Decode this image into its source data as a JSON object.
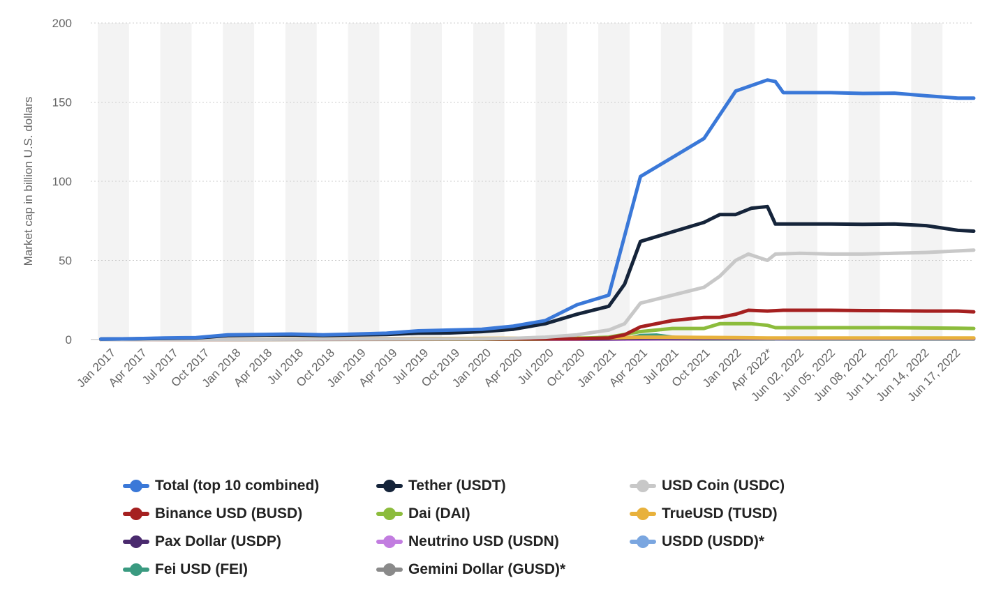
{
  "chart_data": {
    "type": "line",
    "title": "",
    "xlabel": "",
    "ylabel": "Market cap in billion U.S. dollars",
    "ylim": [
      0,
      200
    ],
    "yticks": [
      0,
      50,
      100,
      150,
      200
    ],
    "grid": "horizontal dotted",
    "legend_position": "bottom",
    "x_tick_labels": [
      "Jan 2017",
      "Apr 2017",
      "Jul 2017",
      "Oct 2017",
      "Jan 2018",
      "Apr 2018",
      "Jul 2018",
      "Oct 2018",
      "Jan 2019",
      "Apr 2019",
      "Jul 2019",
      "Oct 2019",
      "Jan 2020",
      "Apr 2020",
      "Jul 2020",
      "Oct 2020",
      "Jan 2021",
      "Apr 2021",
      "Jul 2021",
      "Oct 2021",
      "Jan 2022",
      "Apr 2022*",
      "Jun 02, 2022",
      "Jun 05, 2022",
      "Jun 08, 2022",
      "Jun 11, 2022",
      "Jun 14, 2022",
      "Jun 17, 2022"
    ],
    "series": [
      {
        "name": "Total (top 10 combined)",
        "color": "#3a78d8",
        "values": [
          [
            0,
            0.3
          ],
          [
            1,
            0.5
          ],
          [
            2,
            1
          ],
          [
            3,
            1.2
          ],
          [
            4,
            3
          ],
          [
            5,
            3.2
          ],
          [
            6,
            3.5
          ],
          [
            7,
            3
          ],
          [
            8,
            3.5
          ],
          [
            9,
            4
          ],
          [
            10,
            5.5
          ],
          [
            11,
            6
          ],
          [
            12,
            6.5
          ],
          [
            13,
            8.5
          ],
          [
            14,
            12
          ],
          [
            15,
            22
          ],
          [
            16,
            28
          ],
          [
            17,
            103
          ],
          [
            18,
            115
          ],
          [
            19,
            127
          ],
          [
            20,
            157
          ],
          [
            21,
            164
          ],
          [
            21.25,
            163
          ],
          [
            21.5,
            156
          ],
          [
            22,
            156
          ],
          [
            23,
            156
          ],
          [
            24,
            155.5
          ],
          [
            25,
            155.7
          ],
          [
            26,
            154
          ],
          [
            27,
            152.5
          ],
          [
            27.5,
            152.5
          ]
        ]
      },
      {
        "name": "Tether (USDT)",
        "color": "#15243a",
        "values": [
          [
            0,
            0.3
          ],
          [
            1,
            0.5
          ],
          [
            2,
            0.8
          ],
          [
            3,
            1
          ],
          [
            4,
            2.5
          ],
          [
            5,
            2.8
          ],
          [
            6,
            2.9
          ],
          [
            7,
            2.5
          ],
          [
            8,
            2.9
          ],
          [
            9,
            3.2
          ],
          [
            10,
            4
          ],
          [
            11,
            4.2
          ],
          [
            12,
            5
          ],
          [
            13,
            6.5
          ],
          [
            14,
            10
          ],
          [
            15,
            16
          ],
          [
            16,
            21
          ],
          [
            16.5,
            35
          ],
          [
            17,
            62
          ],
          [
            18,
            68
          ],
          [
            19,
            74
          ],
          [
            19.5,
            79
          ],
          [
            20,
            79
          ],
          [
            20.5,
            83
          ],
          [
            21,
            84
          ],
          [
            21.25,
            73
          ],
          [
            22,
            73
          ],
          [
            23,
            73
          ],
          [
            24,
            72.8
          ],
          [
            25,
            73
          ],
          [
            26,
            72
          ],
          [
            27,
            69
          ],
          [
            27.5,
            68.5
          ]
        ]
      },
      {
        "name": "USD Coin (USDC)",
        "color": "#c8c8c8",
        "values": [
          [
            0,
            0
          ],
          [
            12,
            0.5
          ],
          [
            13,
            0.8
          ],
          [
            14,
            1.5
          ],
          [
            15,
            3
          ],
          [
            16,
            6
          ],
          [
            16.5,
            10
          ],
          [
            17,
            23
          ],
          [
            18,
            28
          ],
          [
            19,
            33
          ],
          [
            19.5,
            40
          ],
          [
            20,
            50
          ],
          [
            20.4,
            54
          ],
          [
            21,
            50
          ],
          [
            21.25,
            54
          ],
          [
            22,
            54.5
          ],
          [
            23,
            54
          ],
          [
            24,
            54
          ],
          [
            25,
            54.5
          ],
          [
            26,
            55
          ],
          [
            27,
            56
          ],
          [
            27.5,
            56.5
          ]
        ]
      },
      {
        "name": "Binance USD (BUSD)",
        "color": "#a52020",
        "values": [
          [
            0,
            0
          ],
          [
            15,
            0.5
          ],
          [
            16,
            1
          ],
          [
            16.5,
            3
          ],
          [
            17,
            8
          ],
          [
            18,
            12
          ],
          [
            19,
            14
          ],
          [
            19.5,
            14
          ],
          [
            20,
            16
          ],
          [
            20.4,
            18.5
          ],
          [
            21,
            18
          ],
          [
            21.5,
            18.5
          ],
          [
            22,
            18.5
          ],
          [
            23,
            18.5
          ],
          [
            24,
            18.3
          ],
          [
            25,
            18.2
          ],
          [
            26,
            18
          ],
          [
            27,
            18
          ],
          [
            27.5,
            17.5
          ]
        ]
      },
      {
        "name": "Dai (DAI)",
        "color": "#8cbc3c",
        "values": [
          [
            0,
            0
          ],
          [
            14,
            0.3
          ],
          [
            15,
            0.8
          ],
          [
            16,
            1.5
          ],
          [
            17,
            5
          ],
          [
            18,
            7
          ],
          [
            19,
            7
          ],
          [
            19.5,
            10
          ],
          [
            20,
            10
          ],
          [
            20.5,
            10
          ],
          [
            21,
            9
          ],
          [
            21.25,
            7.5
          ],
          [
            22,
            7.5
          ],
          [
            23,
            7.5
          ],
          [
            24,
            7.5
          ],
          [
            25,
            7.5
          ],
          [
            26,
            7.3
          ],
          [
            27,
            7.2
          ],
          [
            27.5,
            7
          ]
        ]
      },
      {
        "name": "TrueUSD (TUSD)",
        "color": "#e8b13c",
        "values": [
          [
            0,
            0
          ],
          [
            16,
            1
          ],
          [
            17,
            1.5
          ],
          [
            18,
            1.5
          ],
          [
            19,
            1.3
          ],
          [
            20,
            1.2
          ],
          [
            21,
            1
          ],
          [
            22,
            1
          ],
          [
            23,
            1
          ],
          [
            24,
            1
          ],
          [
            25,
            1
          ],
          [
            26,
            1
          ],
          [
            27,
            1
          ],
          [
            27.5,
            1
          ]
        ]
      },
      {
        "name": "Pax Dollar (USDP)",
        "color": "#4a2a6e",
        "values": [
          [
            0,
            0
          ],
          [
            16,
            0.5
          ],
          [
            17,
            0.8
          ],
          [
            18,
            0.9
          ],
          [
            19,
            0.9
          ],
          [
            20,
            0.9
          ],
          [
            21,
            0.9
          ],
          [
            22,
            0.9
          ],
          [
            23,
            0.9
          ],
          [
            24,
            0.9
          ],
          [
            25,
            0.9
          ],
          [
            26,
            0.9
          ],
          [
            27,
            0.9
          ],
          [
            27.5,
            0.9
          ]
        ]
      },
      {
        "name": "Neutrino USD (USDN)",
        "color": "#c27de0",
        "values": [
          [
            0,
            0
          ],
          [
            17,
            0.3
          ],
          [
            18,
            0.5
          ],
          [
            19,
            0.6
          ],
          [
            20,
            0.6
          ],
          [
            21,
            0.6
          ],
          [
            22,
            0.6
          ],
          [
            23,
            0.6
          ],
          [
            24,
            0.6
          ],
          [
            25,
            0.6
          ],
          [
            26,
            0.6
          ],
          [
            27,
            0.6
          ],
          [
            27.5,
            0.6
          ]
        ]
      },
      {
        "name": "USDD (USDD)*",
        "color": "#7aa6e0",
        "values": [
          [
            21.25,
            0.5
          ],
          [
            22,
            0.6
          ],
          [
            23,
            0.7
          ],
          [
            24,
            0.7
          ],
          [
            25,
            0.7
          ],
          [
            26,
            0.7
          ],
          [
            27,
            0.7
          ],
          [
            27.5,
            0.7
          ]
        ]
      },
      {
        "name": "Fei USD (FEI)",
        "color": "#3a9a80",
        "values": [
          [
            16.5,
            0.3
          ],
          [
            17,
            2.5
          ],
          [
            17.5,
            2.8
          ],
          [
            18,
            1.5
          ],
          [
            18.5,
            0.6
          ],
          [
            19,
            0.5
          ],
          [
            20,
            0.5
          ],
          [
            21,
            0.5
          ],
          [
            22,
            0.5
          ],
          [
            23,
            0.5
          ],
          [
            24,
            0.5
          ],
          [
            25,
            0.5
          ],
          [
            26,
            0.5
          ],
          [
            27,
            0.5
          ],
          [
            27.5,
            0.5
          ]
        ]
      },
      {
        "name": "Gemini Dollar (GUSD)*",
        "color": "#8a8a8a",
        "values": [
          [
            0,
            0.1
          ],
          [
            5,
            0.2
          ],
          [
            10,
            0.2
          ],
          [
            15,
            0.3
          ],
          [
            20,
            0.3
          ],
          [
            21,
            0.3
          ],
          [
            22,
            0.3
          ],
          [
            23,
            0.3
          ],
          [
            24,
            0.3
          ],
          [
            25,
            0.3
          ],
          [
            26,
            0.3
          ],
          [
            27,
            0.3
          ],
          [
            27.5,
            0.3
          ]
        ]
      }
    ]
  },
  "legend": {
    "items": [
      {
        "label": "Total (top 10 combined)",
        "color": "#3a78d8"
      },
      {
        "label": "Tether (USDT)",
        "color": "#15243a"
      },
      {
        "label": "USD Coin (USDC)",
        "color": "#c8c8c8"
      },
      {
        "label": "Binance USD (BUSD)",
        "color": "#a52020"
      },
      {
        "label": "Dai (DAI)",
        "color": "#8cbc3c"
      },
      {
        "label": "TrueUSD (TUSD)",
        "color": "#e8b13c"
      },
      {
        "label": "Pax Dollar (USDP)",
        "color": "#4a2a6e"
      },
      {
        "label": "Neutrino USD (USDN)",
        "color": "#c27de0"
      },
      {
        "label": "USDD (USDD)*",
        "color": "#7aa6e0"
      },
      {
        "label": "Fei USD (FEI)",
        "color": "#3a9a80"
      },
      {
        "label": "Gemini Dollar (GUSD)*",
        "color": "#8a8a8a"
      }
    ]
  }
}
